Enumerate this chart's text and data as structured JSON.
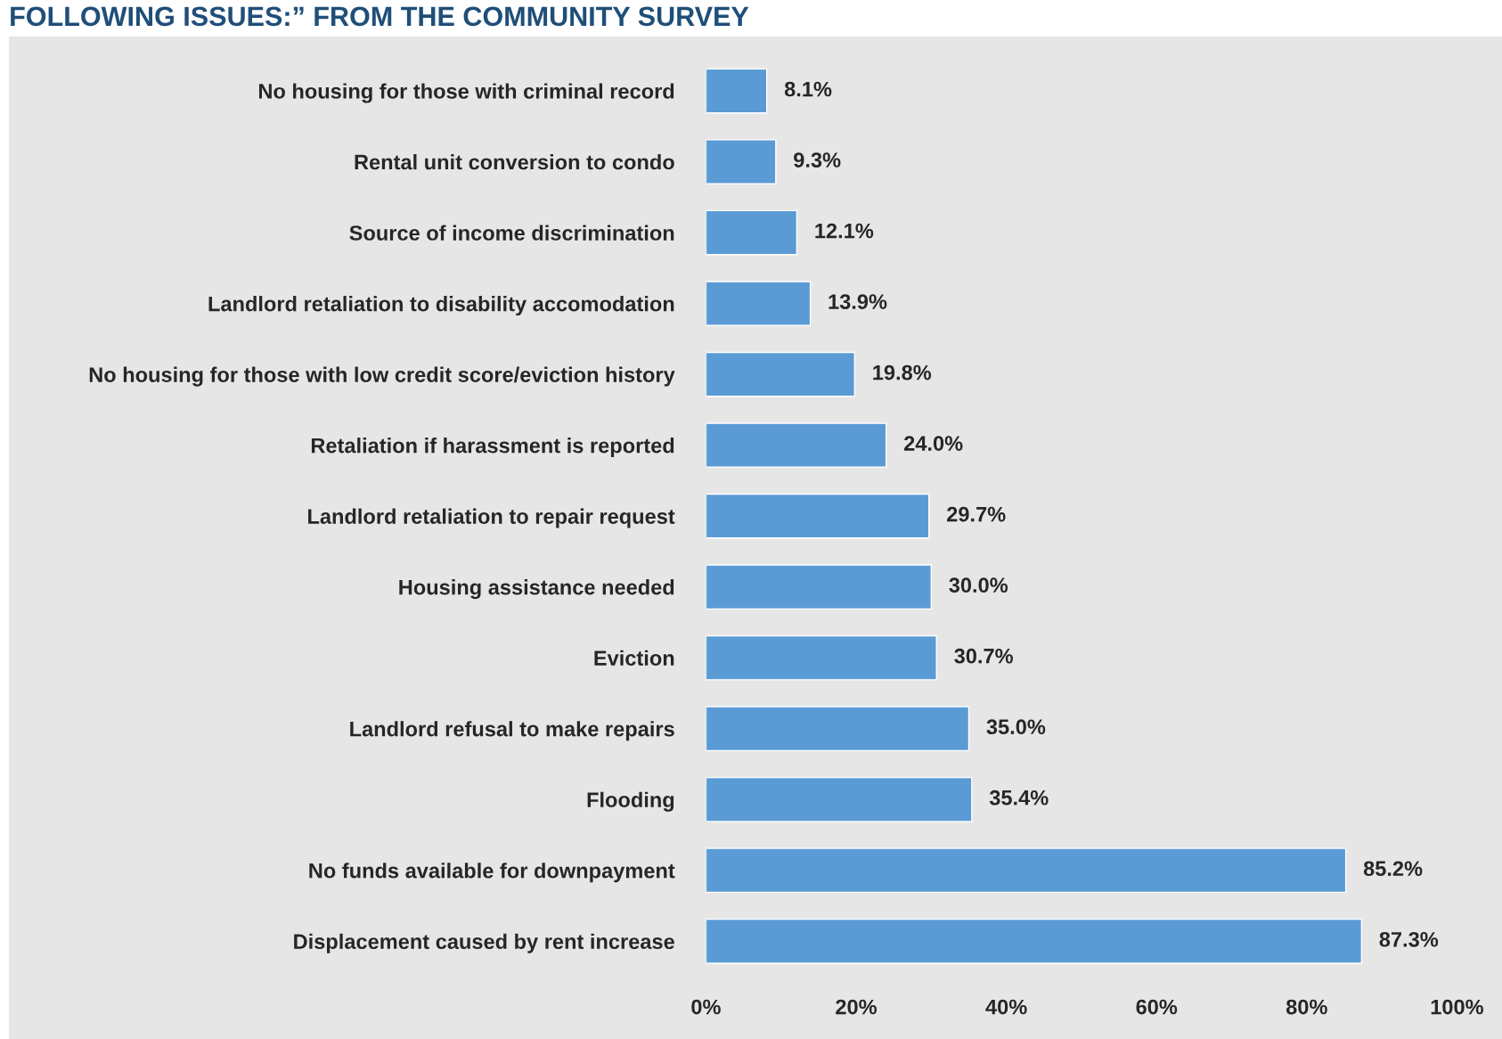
{
  "chart_data": {
    "type": "bar",
    "orientation": "horizontal",
    "title": "FOLLOWING ISSUES:” FROM THE COMMUNITY SURVEY",
    "categories": [
      "No housing for those with criminal record",
      "Rental unit conversion to condo",
      "Source of income discrimination",
      "Landlord retaliation to disability accomodation",
      "No housing for those with low credit score/eviction history",
      "Retaliation if harassment is reported",
      "Landlord retaliation to repair request",
      "Housing assistance needed",
      "Eviction",
      "Landlord refusal to make repairs",
      "Flooding",
      "No funds available for downpayment",
      "Displacement caused by rent increase"
    ],
    "values": [
      8.1,
      9.3,
      12.1,
      13.9,
      19.8,
      24.0,
      29.7,
      30.0,
      30.7,
      35.0,
      35.4,
      85.2,
      87.3
    ],
    "value_labels": [
      "8.1%",
      "9.3%",
      "12.1%",
      "13.9%",
      "19.8%",
      "24.0%",
      "29.7%",
      "30.0%",
      "30.7%",
      "35.0%",
      "35.4%",
      "85.2%",
      "87.3%"
    ],
    "color": "#5b9bd5",
    "xlim": [
      0,
      100
    ],
    "xticks": [
      {
        "value": 0,
        "label": "0%"
      },
      {
        "value": 20,
        "label": "20%"
      },
      {
        "value": 40,
        "label": "40%"
      },
      {
        "value": 60,
        "label": "60%"
      },
      {
        "value": 80,
        "label": "80%"
      },
      {
        "value": 100,
        "label": "100%"
      }
    ],
    "grid": false,
    "legend": false
  }
}
